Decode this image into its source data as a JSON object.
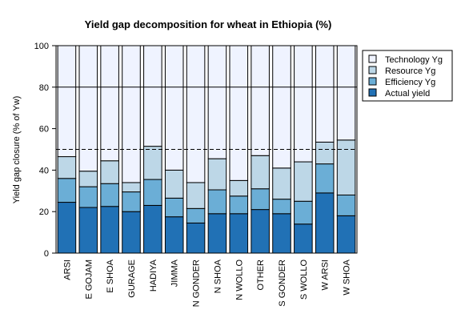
{
  "chart_data": {
    "type": "bar",
    "stacked": true,
    "title": "Yield gap decomposition for wheat in Ethiopia (%)",
    "xlabel": "",
    "ylabel": "Yield gap closure (% of Yw)",
    "ylim": [
      0,
      100
    ],
    "yticks": [
      "0",
      "20",
      "40",
      "60",
      "80",
      "100"
    ],
    "categories": [
      "ARSI",
      "E GOJAM",
      "E SHOA",
      "GURAGE",
      "HADIYA",
      "JIMMA",
      "N GONDER",
      "N SHOA",
      "N WOLLO",
      "OTHER",
      "S GONDER",
      "S WOLLO",
      "W ARSI",
      "W SHOA"
    ],
    "series": [
      {
        "name": "Actual yield",
        "color": "#2171b5",
        "values": [
          24.5,
          22,
          22.5,
          20,
          23,
          17.5,
          14.5,
          19,
          19,
          21,
          19,
          14,
          29,
          18
        ]
      },
      {
        "name": "Efficiency Yg",
        "color": "#6baed6",
        "values": [
          11.5,
          10,
          11,
          9.5,
          12.5,
          9,
          7,
          11.5,
          8.5,
          10,
          7,
          11,
          14,
          10
        ]
      },
      {
        "name": "Resource Yg",
        "color": "#bdd7e7",
        "values": [
          10.5,
          7.5,
          11,
          4.5,
          16,
          13.5,
          12.5,
          15,
          7.5,
          16,
          15,
          19,
          10.5,
          26.5
        ]
      },
      {
        "name": "Technology Yg",
        "color": "#eff3ff",
        "values": [
          53.5,
          60.5,
          55.5,
          66,
          48.5,
          60,
          66,
          54.5,
          65,
          53,
          59,
          56,
          46.5,
          45.5
        ]
      }
    ],
    "reference_lines": [
      {
        "y": 80,
        "style": "solid"
      },
      {
        "y": 50,
        "style": "dashed"
      }
    ],
    "legend_position": "top-right",
    "legend_order": [
      "Technology Yg",
      "Resource Yg",
      "Efficiency Yg",
      "Actual yield"
    ]
  }
}
